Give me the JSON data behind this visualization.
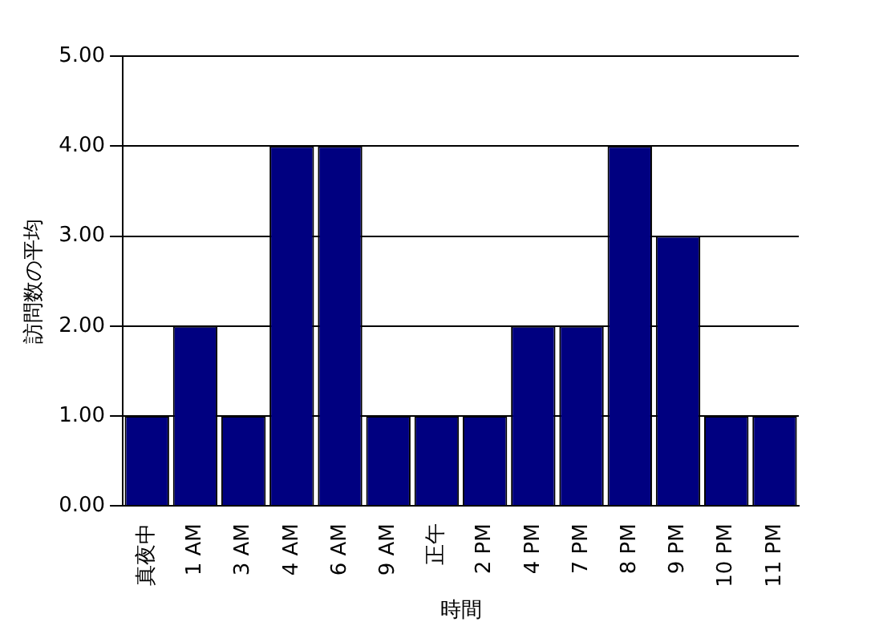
{
  "chart_data": {
    "type": "bar",
    "xlabel": "時間",
    "ylabel": "訪問数の平均",
    "categories": [
      "真夜中",
      "1 AM",
      "3 AM",
      "4 AM",
      "6 AM",
      "9 AM",
      "正午",
      "2 PM",
      "4 PM",
      "7 PM",
      "8 PM",
      "9 PM",
      "10 PM",
      "11 PM"
    ],
    "values": [
      1,
      2,
      1,
      4,
      4,
      1,
      1,
      1,
      2,
      2,
      4,
      3,
      1,
      1
    ],
    "color": "#000080",
    "ylim": [
      0,
      5
    ],
    "yticks": [
      {
        "value": 0,
        "label": "0.00"
      },
      {
        "value": 1,
        "label": "1.00"
      },
      {
        "value": 2,
        "label": "2.00"
      },
      {
        "value": 3,
        "label": "3.00"
      },
      {
        "value": 4,
        "label": "4.00"
      },
      {
        "value": 5,
        "label": "5.00"
      }
    ],
    "grid": "y",
    "legend": false
  }
}
